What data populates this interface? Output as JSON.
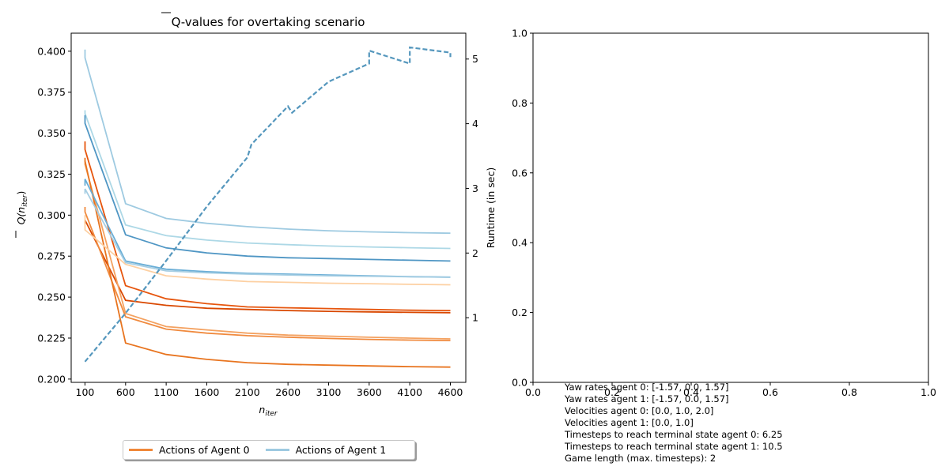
{
  "chart_data": [
    {
      "type": "line",
      "title_prefix": "Q",
      "title_suffix": "-values for overtaking scenario",
      "xlabel_base": "n",
      "xlabel_sub": "iter",
      "ylabel_left": "Q(n",
      "ylabel_left_sub": "iter",
      "ylabel_left_close": ")",
      "ylabel_right": "Runtime (in sec)",
      "x_ticks": [
        100,
        600,
        1100,
        1600,
        2100,
        2600,
        3100,
        3600,
        4100,
        4600
      ],
      "y_ticks": [
        "0.200",
        "0.225",
        "0.250",
        "0.275",
        "0.300",
        "0.325",
        "0.350",
        "0.375",
        "0.400"
      ],
      "y2_ticks": [
        "1",
        "2",
        "3",
        "4",
        "5"
      ],
      "xlim": [
        -70,
        4790
      ],
      "ylim": [
        0.198,
        0.411
      ],
      "y2lim": [
        0.0,
        5.4
      ],
      "grid": false,
      "legend_position": "bottom-center",
      "legend": [
        {
          "label": "Actions of Agent 0",
          "color": "#f0883a"
        },
        {
          "label": "Actions of Agent 1",
          "color": "#9ecae1"
        }
      ],
      "x": [
        100,
        600,
        1100,
        1600,
        2100,
        2600,
        3100,
        3600,
        4100,
        4600
      ],
      "series": [
        {
          "color": "#e6550d",
          "start": [
            0.345,
            0.34
          ],
          "values": [
            0.34,
            0.257,
            0.249,
            0.246,
            0.244,
            0.2435,
            0.243,
            0.2425,
            0.242,
            0.2418
          ]
        },
        {
          "color": "#d94801",
          "start": [
            0.295,
            0.297
          ],
          "values": [
            0.297,
            0.248,
            0.245,
            0.2432,
            0.2425,
            0.2418,
            0.2413,
            0.241,
            0.2407,
            0.2405
          ]
        },
        {
          "color": "#f4a261",
          "start": [
            0.333,
            0.331
          ],
          "values": [
            0.331,
            0.24,
            0.232,
            0.23,
            0.228,
            0.2268,
            0.2262,
            0.2255,
            0.225,
            0.2245
          ]
        },
        {
          "color": "#f08a3e",
          "start": [
            0.305,
            0.302
          ],
          "values": [
            0.302,
            0.238,
            0.2305,
            0.228,
            0.2265,
            0.2255,
            0.2248,
            0.2242,
            0.2238,
            0.2235
          ]
        },
        {
          "color": "#e8741f",
          "start": [
            0.335,
            0.333
          ],
          "values": [
            0.333,
            0.222,
            0.215,
            0.212,
            0.21,
            0.209,
            0.2085,
            0.208,
            0.2076,
            0.2073
          ]
        },
        {
          "color": "#fdd0a2",
          "start": [
            0.3,
            0.291
          ],
          "values": [
            0.291,
            0.27,
            0.263,
            0.261,
            0.2595,
            0.259,
            0.2585,
            0.2582,
            0.2578,
            0.2575
          ]
        },
        {
          "color": "#9ecae1",
          "start": [
            0.401,
            0.396
          ],
          "values": [
            0.396,
            0.307,
            0.298,
            0.295,
            0.293,
            0.2915,
            0.2905,
            0.2898,
            0.2893,
            0.289
          ]
        },
        {
          "color": "#add8e6",
          "start": [
            0.364,
            0.362
          ],
          "values": [
            0.362,
            0.294,
            0.2875,
            0.2848,
            0.283,
            0.282,
            0.2812,
            0.2806,
            0.2801,
            0.2797
          ]
        },
        {
          "color": "#4f96c4",
          "start": [
            0.361,
            0.356
          ],
          "values": [
            0.356,
            0.288,
            0.28,
            0.277,
            0.275,
            0.274,
            0.2735,
            0.273,
            0.2725,
            0.272
          ]
        },
        {
          "color": "#6aaed6",
          "start": [
            0.318,
            0.322
          ],
          "values": [
            0.322,
            0.272,
            0.267,
            0.2655,
            0.2645,
            0.264,
            0.2635,
            0.263,
            0.2625,
            0.2622
          ]
        },
        {
          "color": "#a6cee3",
          "start": [
            0.313,
            0.316
          ],
          "values": [
            0.316,
            0.271,
            0.266,
            0.2648,
            0.264,
            0.2635,
            0.263,
            0.2627,
            0.2624,
            0.2621
          ]
        }
      ],
      "runtime_series": {
        "color": "#5597bd",
        "dash": true,
        "points": [
          [
            100,
            0.32
          ],
          [
            600,
            1.07
          ],
          [
            1100,
            1.88
          ],
          [
            1600,
            2.72
          ],
          [
            2100,
            3.48
          ],
          [
            2150,
            3.68
          ],
          [
            2600,
            4.27
          ],
          [
            2650,
            4.17
          ],
          [
            3100,
            4.65
          ],
          [
            3600,
            4.93
          ],
          [
            3600,
            5.13
          ],
          [
            4100,
            4.93
          ],
          [
            4100,
            5.18
          ],
          [
            4600,
            5.1
          ],
          [
            4600,
            5.03
          ]
        ]
      }
    },
    {
      "type": "line",
      "empty": true,
      "x_ticks": [
        "0.0",
        "0.2",
        "0.4",
        "0.6",
        "0.8",
        "1.0"
      ],
      "y_ticks": [
        "0.0",
        "0.2",
        "0.4",
        "0.6",
        "0.8",
        "1.0"
      ],
      "xlim": [
        0,
        1
      ],
      "ylim": [
        0,
        1
      ],
      "grid": false
    }
  ],
  "info_text": [
    "Yaw rates agent 0: [-1.57, 0.0, 1.57]",
    "Yaw rates agent 1: [-1.57, 0.0, 1.57]",
    "Velocities agent 0: [0.0, 1.0, 2.0]",
    "Velocities agent 1: [0.0, 1.0]",
    "Timesteps to reach terminal state agent 0: 6.25",
    "Timesteps to reach terminal state agent 1: 10.5",
    "Game length (max. timesteps): 2"
  ]
}
